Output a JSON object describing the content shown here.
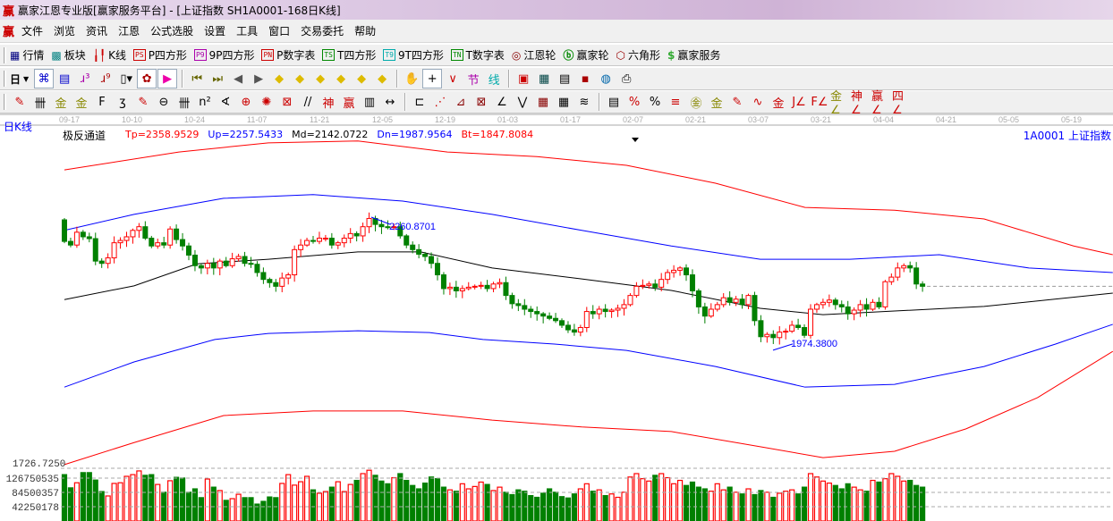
{
  "window": {
    "logo": "赢",
    "title": "赢家江恩专业版[赢家服务平台] - [上证指数  SH1A0001-168日K线]"
  },
  "menu": {
    "logo": "赢",
    "items": [
      "文件",
      "浏览",
      "资讯",
      "江恩",
      "公式选股",
      "设置",
      "工具",
      "窗口",
      "交易委托",
      "帮助"
    ]
  },
  "toolbar1": [
    {
      "name": "quotes-icon",
      "glyph": "▦",
      "color": "#000080",
      "label": "行情"
    },
    {
      "name": "sector-icon",
      "glyph": "▩",
      "color": "#008080",
      "label": "板块"
    },
    {
      "name": "kline-icon",
      "glyph": "╽╿",
      "color": "#c00",
      "label": "K线"
    },
    {
      "name": "p-square-icon",
      "badge": "PS",
      "color": "#c00",
      "label": "P四方形"
    },
    {
      "name": "9p-square-icon",
      "badge": "P9",
      "color": "#a0a",
      "label": "9P四方形"
    },
    {
      "name": "p-number-table-icon",
      "badge": "PN",
      "color": "#c00",
      "label": "P数字表"
    },
    {
      "name": "t-square-icon",
      "badge": "TS",
      "color": "#080",
      "label": "T四方形"
    },
    {
      "name": "9t-square-icon",
      "badge": "T9",
      "color": "#0aa",
      "label": "9T四方形"
    },
    {
      "name": "t-number-table-icon",
      "badge": "TN",
      "color": "#080",
      "label": "T数字表"
    },
    {
      "name": "gann-wheel-icon",
      "glyph": "◎",
      "color": "#800",
      "label": "江恩轮"
    },
    {
      "name": "winner-wheel-icon",
      "glyph": "ⓑ",
      "color": "#080",
      "label": "赢家轮"
    },
    {
      "name": "hexagon-icon",
      "glyph": "⬡",
      "color": "#900",
      "label": "六角形"
    },
    {
      "name": "winner-service-icon",
      "glyph": "$",
      "color": "#3a3",
      "label": "赢家服务"
    }
  ],
  "toolbar2": {
    "period": "日",
    "icons": [
      {
        "name": "overlay-icon",
        "glyph": "⌘",
        "color": "#00c",
        "sel": true
      },
      {
        "name": "notes-icon",
        "glyph": "▤",
        "color": "#00c"
      },
      {
        "name": "indicator-3-icon",
        "glyph": "ɹ³",
        "color": "#a0a"
      },
      {
        "name": "indicator-9-icon",
        "glyph": "ɹ⁹",
        "color": "#a00"
      },
      {
        "name": "candle-type-icon",
        "glyph": "▯▾",
        "color": "#000"
      },
      {
        "name": "pattern-icon",
        "glyph": "✿",
        "color": "#a00",
        "sel": true
      },
      {
        "name": "flag-icon",
        "glyph": "▶",
        "color": "#e0a",
        "sel": true
      },
      {
        "name": "first-icon",
        "glyph": "⏮",
        "color": "#660"
      },
      {
        "name": "last-icon",
        "glyph": "⏭",
        "color": "#660"
      },
      {
        "name": "prev-icon",
        "glyph": "◀",
        "color": "#555"
      },
      {
        "name": "next-icon",
        "glyph": "▶",
        "color": "#555"
      },
      {
        "name": "move-left-icon",
        "glyph": "◆",
        "color": "#db0"
      },
      {
        "name": "move-right-icon",
        "glyph": "◆",
        "color": "#db0"
      },
      {
        "name": "expand-h-icon",
        "glyph": "◆",
        "color": "#db0"
      },
      {
        "name": "shrink-icon",
        "glyph": "◆",
        "color": "#db0"
      },
      {
        "name": "zoom-in-icon",
        "glyph": "◆",
        "color": "#db0"
      },
      {
        "name": "expand-v-icon",
        "glyph": "◆",
        "color": "#db0"
      },
      {
        "name": "hand-icon",
        "glyph": "✋",
        "color": "#000"
      },
      {
        "name": "crosshair-icon",
        "glyph": "+",
        "color": "#000",
        "sel": true
      },
      {
        "name": "pivot-icon",
        "glyph": "∨",
        "color": "#c00"
      },
      {
        "name": "section-icon",
        "glyph": "节",
        "color": "#a0a"
      },
      {
        "name": "line-icon",
        "glyph": "线",
        "color": "#0aa"
      },
      {
        "name": "calendar-icon",
        "glyph": "▣",
        "color": "#c00"
      },
      {
        "name": "calculator-icon",
        "glyph": "▦",
        "color": "#044"
      },
      {
        "name": "report-icon",
        "glyph": "▤",
        "color": "#000"
      },
      {
        "name": "save-icon",
        "glyph": "▪",
        "color": "#a00"
      },
      {
        "name": "network-icon",
        "glyph": "◍",
        "color": "#06a"
      },
      {
        "name": "print-icon",
        "glyph": "⎙",
        "color": "#000"
      }
    ]
  },
  "toolbar3": [
    {
      "name": "pen-icon",
      "glyph": "✎",
      "color": "#c00"
    },
    {
      "name": "grid-lines-icon",
      "glyph": "卌",
      "color": "#000"
    },
    {
      "name": "gold-ratio-icon",
      "glyph": "金",
      "color": "#880"
    },
    {
      "name": "gold-ratio-2-icon",
      "glyph": "金",
      "color": "#880"
    },
    {
      "name": "fib-icon",
      "glyph": "F",
      "color": "#000"
    },
    {
      "name": "spiral-icon",
      "glyph": "ʒ",
      "color": "#000"
    },
    {
      "name": "eraser-icon",
      "glyph": "✎",
      "color": "#c00"
    },
    {
      "name": "circle-icon",
      "glyph": "⊖",
      "color": "#000"
    },
    {
      "name": "parallel-icon",
      "glyph": "卌",
      "color": "#000"
    },
    {
      "name": "square-icon",
      "glyph": "n²",
      "color": "#000"
    },
    {
      "name": "angle-icon",
      "glyph": "∢",
      "color": "#000"
    },
    {
      "name": "target-icon",
      "glyph": "⊕",
      "color": "#c00"
    },
    {
      "name": "web-icon",
      "glyph": "✺",
      "color": "#c00"
    },
    {
      "name": "box-icon",
      "glyph": "⊠",
      "color": "#c00"
    },
    {
      "name": "slash-icon",
      "glyph": "//",
      "color": "#000"
    },
    {
      "name": "god-icon",
      "glyph": "神",
      "color": "#c00"
    },
    {
      "name": "win-icon",
      "glyph": "赢",
      "color": "#c00"
    },
    {
      "name": "ruler-icon",
      "glyph": "▥",
      "color": "#000"
    },
    {
      "name": "measure-icon",
      "glyph": "↔",
      "color": "#000"
    },
    {
      "name": "frame-icon",
      "glyph": "⊏",
      "color": "#000"
    },
    {
      "name": "fan-icon",
      "glyph": "⋰",
      "color": "#c00"
    },
    {
      "name": "fan-box-icon",
      "glyph": "⊿",
      "color": "#800"
    },
    {
      "name": "gann-box-icon",
      "glyph": "⊠",
      "color": "#800"
    },
    {
      "name": "angle-fan-icon",
      "glyph": "∠",
      "color": "#000"
    },
    {
      "name": "wave-icon",
      "glyph": "⋁",
      "color": "#000"
    },
    {
      "name": "grid-icon",
      "glyph": "▦",
      "color": "#800"
    },
    {
      "name": "grid-2-icon",
      "glyph": "▦",
      "color": "#000"
    },
    {
      "name": "hatch-icon",
      "glyph": "≋",
      "color": "#000"
    },
    {
      "name": "table-icon",
      "glyph": "▤",
      "color": "#000"
    },
    {
      "name": "pct-line-icon",
      "glyph": "%",
      "color": "#c00"
    },
    {
      "name": "percent-icon",
      "glyph": "%",
      "color": "#000"
    },
    {
      "name": "pct-levels-icon",
      "glyph": "≡",
      "color": "#c00"
    },
    {
      "name": "gold-circle-icon",
      "glyph": "㊎",
      "color": "#880"
    },
    {
      "name": "gold-levels-icon",
      "glyph": "金",
      "color": "#880"
    },
    {
      "name": "pen-levels-icon",
      "glyph": "✎",
      "color": "#c00"
    },
    {
      "name": "sine-icon",
      "glyph": "∿",
      "color": "#c00"
    },
    {
      "name": "gold-line-icon",
      "glyph": "金",
      "color": "#c00"
    },
    {
      "name": "j-fan-icon",
      "glyph": "J∠",
      "color": "#c00"
    },
    {
      "name": "f-fan-icon",
      "glyph": "F∠",
      "color": "#c00"
    },
    {
      "name": "gold-fan-icon",
      "glyph": "金∠",
      "color": "#880"
    },
    {
      "name": "god-fan-icon",
      "glyph": "神∠",
      "color": "#c00"
    },
    {
      "name": "win-fan-icon",
      "glyph": "赢∠",
      "color": "#c00"
    },
    {
      "name": "four-fan-icon",
      "glyph": "四∠",
      "color": "#c00"
    }
  ],
  "chart_header": {
    "period": "日K线",
    "indicator": "极反通道",
    "params": [
      {
        "text": "Tp=2358.9529",
        "color": "#ff0000"
      },
      {
        "text": "Up=2257.5433",
        "color": "#0000ff"
      },
      {
        "text": "Md=2142.0722",
        "color": "#000000"
      },
      {
        "text": "Dn=1987.9564",
        "color": "#0000ff"
      },
      {
        "text": "Bt=1847.8084",
        "color": "#ff0000"
      }
    ],
    "stock": "1A0001  上证指数"
  },
  "chart_data": {
    "type": "candlestick",
    "date_labels": [
      "09-17",
      "10-10",
      "10-24",
      "11-07",
      "11-21",
      "12-05",
      "12-19",
      "01-03",
      "01-17",
      "02-07",
      "02-21",
      "03-07",
      "03-21",
      "04-04",
      "04-21",
      "05-05",
      "05-19"
    ],
    "first_open": 2255,
    "closes": [
      2208,
      2200,
      2228,
      2218,
      2214,
      2165,
      2160,
      2172,
      2205,
      2210,
      2218,
      2232,
      2240,
      2215,
      2198,
      2205,
      2200,
      2235,
      2212,
      2198,
      2178,
      2155,
      2150,
      2160,
      2150,
      2165,
      2155,
      2170,
      2175,
      2160,
      2158,
      2140,
      2125,
      2118,
      2110,
      2128,
      2135,
      2190,
      2200,
      2210,
      2208,
      2215,
      2215,
      2200,
      2205,
      2215,
      2225,
      2220,
      2240,
      2258,
      2245,
      2240,
      2238,
      2240,
      2220,
      2200,
      2190,
      2180,
      2175,
      2160,
      2135,
      2105,
      2108,
      2100,
      2105,
      2108,
      2110,
      2112,
      2105,
      2115,
      2118,
      2090,
      2072,
      2068,
      2060,
      2055,
      2050,
      2045,
      2040,
      2035,
      2025,
      2015,
      2010,
      2020,
      2055,
      2050,
      2060,
      2055,
      2058,
      2062,
      2070,
      2090,
      2110,
      2112,
      2115,
      2108,
      2125,
      2140,
      2145,
      2150,
      2135,
      2100,
      2065,
      2045,
      2060,
      2070,
      2085,
      2075,
      2082,
      2070,
      2090,
      2035,
      2000,
      2005,
      1998,
      2010,
      2012,
      2025,
      2020,
      2003,
      2060,
      2070,
      2075,
      2080,
      2070,
      2065,
      2050,
      2058,
      2070,
      2060,
      2075,
      2065,
      2120,
      2130,
      2150,
      2155,
      2150,
      2115,
      2110
    ],
    "volumes": [
      137000000.0,
      98000000.0,
      113000000.0,
      143000000.0,
      143000000.0,
      121000000.0,
      87000000.0,
      74000000.0,
      111000000.0,
      113000000.0,
      132000000.0,
      137000000.0,
      148000000.0,
      135000000.0,
      137000000.0,
      108000000.0,
      85000000.0,
      119000000.0,
      129000000.0,
      127000000.0,
      85000000.0,
      95000000.0,
      69000000.0,
      124000000.0,
      100000000.0,
      90000000.0,
      61000000.0,
      66000000.0,
      79000000.0,
      69000000.0,
      69000000.0,
      50000000.0,
      58000000.0,
      71000000.0,
      69000000.0,
      111000000.0,
      137000000.0,
      106000000.0,
      116000000.0,
      132000000.0,
      92000000.0,
      82000000.0,
      87000000.0,
      100000000.0,
      116000000.0,
      87000000.0,
      108000000.0,
      120000000.0,
      140000000.0,
      150000000.0,
      135000000.0,
      118000000.0,
      110000000.0,
      128000000.0,
      140000000.0,
      120000000.0,
      105000000.0,
      95000000.0,
      112000000.0,
      130000000.0,
      125000000.0,
      100000000.0,
      92000000.0,
      88000000.0,
      110000000.0,
      95000000.0,
      102000000.0,
      115000000.0,
      108000000.0,
      90000000.0,
      100000000.0,
      85000000.0,
      78000000.0,
      92000000.0,
      88000000.0,
      75000000.0,
      70000000.0,
      82000000.0,
      95000000.0,
      85000000.0,
      72000000.0,
      68000000.0,
      80000000.0,
      95000000.0,
      110000000.0,
      88000000.0,
      92000000.0,
      75000000.0,
      80000000.0,
      70000000.0,
      85000000.0,
      130000000.0,
      140000000.0,
      125000000.0,
      118000000.0,
      135000000.0,
      140000000.0,
      128000000.0,
      110000000.0,
      120000000.0,
      105000000.0,
      115000000.0,
      100000000.0,
      95000000.0,
      88000000.0,
      110000000.0,
      92000000.0,
      100000000.0,
      85000000.0,
      80000000.0,
      95000000.0,
      78000000.0,
      90000000.0,
      85000000.0,
      70000000.0,
      82000000.0,
      88000000.0,
      92000000.0,
      80000000.0,
      100000000.0,
      140000000.0,
      130000000.0,
      118000000.0,
      112000000.0,
      105000000.0,
      95000000.0,
      110000000.0,
      100000000.0,
      92000000.0,
      88000000.0,
      120000000.0,
      115000000.0,
      125000000.0,
      140000000.0,
      132000000.0,
      118000000.0,
      120000000.0,
      105000000.0,
      100000000.0
    ],
    "channels": [
      {
        "name": "Tp",
        "color": "#ff0000",
        "points": [
          [
            0,
            2364
          ],
          [
            18.4,
            2403
          ],
          [
            32.8,
            2423
          ],
          [
            47.2,
            2427
          ],
          [
            61.6,
            2403
          ],
          [
            76,
            2393
          ],
          [
            90.4,
            2374
          ],
          [
            104.7,
            2335
          ],
          [
            119.1,
            2282
          ],
          [
            133.5,
            2276
          ],
          [
            147.9,
            2257
          ],
          [
            162.3,
            2198
          ],
          [
            168.6,
            2179
          ]
        ]
      },
      {
        "name": "Up",
        "color": "#0000ff",
        "points": [
          [
            0,
            2232
          ],
          [
            11.2,
            2267
          ],
          [
            25.6,
            2302
          ],
          [
            40,
            2310
          ],
          [
            54.4,
            2296
          ],
          [
            68.8,
            2267
          ],
          [
            83.2,
            2232
          ],
          [
            97.6,
            2198
          ],
          [
            111.9,
            2169
          ],
          [
            126.3,
            2169
          ],
          [
            140.7,
            2179
          ],
          [
            155.1,
            2150
          ],
          [
            168.6,
            2140
          ]
        ]
      },
      {
        "name": "Md",
        "color": "#000000",
        "points": [
          [
            0,
            2081
          ],
          [
            11.2,
            2111
          ],
          [
            21.3,
            2159
          ],
          [
            32.8,
            2169
          ],
          [
            47.2,
            2185
          ],
          [
            57.3,
            2185
          ],
          [
            68.8,
            2150
          ],
          [
            83.2,
            2126
          ],
          [
            97.6,
            2101
          ],
          [
            111.9,
            2062
          ],
          [
            122,
            2048
          ],
          [
            133.5,
            2056
          ],
          [
            147.9,
            2066
          ],
          [
            168.6,
            2095
          ]
        ]
      },
      {
        "name": "Dn",
        "color": "#0000ff",
        "points": [
          [
            0,
            1890
          ],
          [
            11.2,
            1945
          ],
          [
            24.2,
            1994
          ],
          [
            32.8,
            2007
          ],
          [
            47.2,
            2013
          ],
          [
            58.7,
            2009
          ],
          [
            67.3,
            1994
          ],
          [
            78.8,
            1984
          ],
          [
            90.4,
            1970
          ],
          [
            104.7,
            1935
          ],
          [
            119.1,
            1890
          ],
          [
            133.5,
            1896
          ],
          [
            147.9,
            1935
          ],
          [
            159.4,
            1984
          ],
          [
            168.6,
            2027
          ]
        ]
      },
      {
        "name": "Bt",
        "color": "#ff0000",
        "points": [
          [
            0,
            1721
          ],
          [
            11.2,
            1769
          ],
          [
            25.6,
            1828
          ],
          [
            40,
            1838
          ],
          [
            54.4,
            1838
          ],
          [
            68.8,
            1818
          ],
          [
            83.2,
            1803
          ],
          [
            97.6,
            1793
          ],
          [
            111.9,
            1760
          ],
          [
            122,
            1736
          ],
          [
            133.5,
            1750
          ],
          [
            145,
            1799
          ],
          [
            156.5,
            1867
          ],
          [
            168.6,
            1968
          ]
        ]
      }
    ],
    "annotations": [
      {
        "text": "2260.8701",
        "price": 2260.8701
      },
      {
        "text": "1974.3800",
        "price": 1974.38
      }
    ],
    "price_axis_label": "1726.7250",
    "volume_axis_labels": [
      "126750535",
      "84500357",
      "42250178"
    ],
    "colors": {
      "up": "#ff0000",
      "down": "#008000"
    }
  }
}
